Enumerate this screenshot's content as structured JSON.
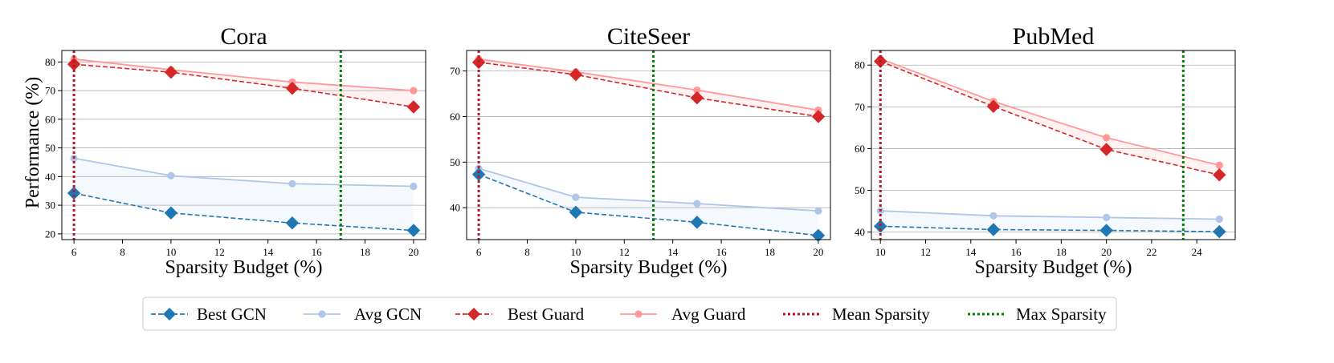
{
  "figure": {
    "ylabel": "Performance (%)",
    "legend": [
      "Best GCN",
      "Avg GCN",
      "Best Guard",
      "Avg Guard",
      "Mean Sparsity",
      "Max Sparsity"
    ]
  },
  "colors": {
    "best_gcn": "#1f77b4",
    "avg_gcn": "#aec7e8",
    "best_guard": "#d62728",
    "avg_guard": "#ff9896",
    "mean_sparsity": "#b2182b",
    "max_sparsity": "#008000"
  },
  "chart_data": [
    {
      "type": "line",
      "title": "Cora",
      "xlabel": "Sparsity Budget (%)",
      "ylabel": "Performance (%)",
      "x": [
        6,
        10,
        15,
        20
      ],
      "xlim": [
        5.5,
        20.5
      ],
      "ylim": [
        18,
        84
      ],
      "xticks": [
        6,
        8,
        10,
        12,
        14,
        16,
        18,
        20
      ],
      "yticks": [
        20,
        30,
        40,
        50,
        60,
        70,
        80
      ],
      "grid": "horizontal",
      "series": [
        {
          "name": "Best GCN",
          "values": [
            34.2,
            27.3,
            23.8,
            21.2
          ]
        },
        {
          "name": "Avg GCN",
          "values": [
            46.4,
            40.3,
            37.5,
            36.6
          ]
        },
        {
          "name": "Best Guard",
          "values": [
            79.2,
            76.4,
            70.8,
            64.3
          ]
        },
        {
          "name": "Avg Guard",
          "values": [
            81.0,
            77.3,
            73.0,
            70.0
          ]
        }
      ],
      "mean_sparsity": 6,
      "max_sparsity": 17
    },
    {
      "type": "line",
      "title": "CiteSeer",
      "xlabel": "Sparsity Budget (%)",
      "ylabel": "",
      "x": [
        6,
        10,
        15,
        20
      ],
      "xlim": [
        5.5,
        20.5
      ],
      "ylim": [
        33,
        74.5
      ],
      "xticks": [
        6,
        8,
        10,
        12,
        14,
        16,
        18,
        20
      ],
      "yticks": [
        40,
        50,
        60,
        70
      ],
      "grid": "horizontal",
      "series": [
        {
          "name": "Best GCN",
          "values": [
            47.3,
            39.0,
            36.8,
            33.9
          ]
        },
        {
          "name": "Avg GCN",
          "values": [
            48.6,
            42.3,
            40.9,
            39.3
          ]
        },
        {
          "name": "Best Guard",
          "values": [
            71.9,
            69.2,
            64.1,
            60.0
          ]
        },
        {
          "name": "Avg Guard",
          "values": [
            72.6,
            69.8,
            65.8,
            61.4
          ]
        }
      ],
      "mean_sparsity": 6,
      "max_sparsity": 13.2
    },
    {
      "type": "line",
      "title": "PubMed",
      "xlabel": "Sparsity Budget (%)",
      "ylabel": "",
      "x": [
        10,
        15,
        20,
        25
      ],
      "xlim": [
        9.6,
        25.7
      ],
      "ylim": [
        38.2,
        83.5
      ],
      "xticks": [
        10,
        12,
        14,
        16,
        18,
        20,
        22,
        24
      ],
      "yticks": [
        40,
        50,
        60,
        70,
        80
      ],
      "grid": "horizontal",
      "series": [
        {
          "name": "Best GCN",
          "values": [
            41.4,
            40.6,
            40.4,
            40.1
          ]
        },
        {
          "name": "Avg GCN",
          "values": [
            45.1,
            43.9,
            43.5,
            43.1
          ]
        },
        {
          "name": "Best Guard",
          "values": [
            80.9,
            70.1,
            59.8,
            53.7
          ]
        },
        {
          "name": "Avg Guard",
          "values": [
            81.5,
            71.3,
            62.6,
            56.0
          ]
        }
      ],
      "mean_sparsity": 10,
      "max_sparsity": 23.4
    }
  ]
}
